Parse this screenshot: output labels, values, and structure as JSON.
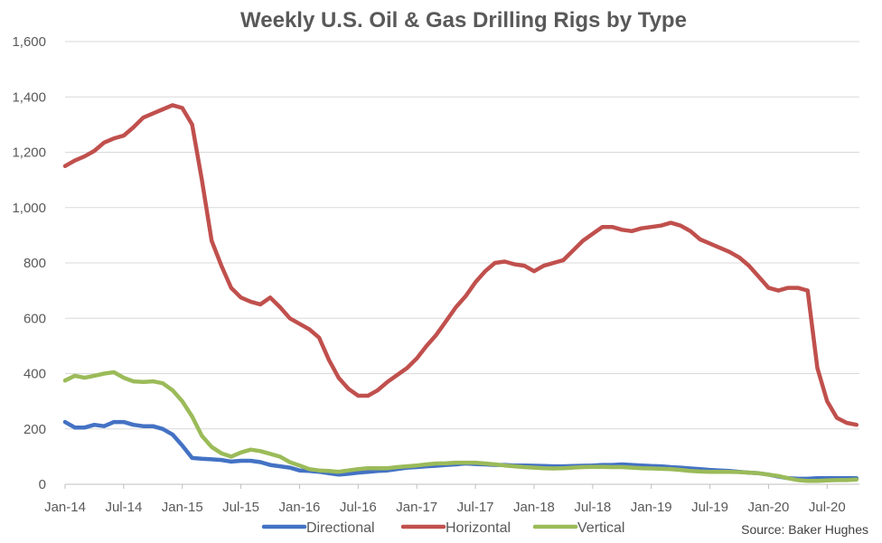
{
  "chart_data": {
    "type": "line",
    "title": "Weekly U.S. Oil & Gas Drilling Rigs by Type",
    "source": "Source: Baker Hughes",
    "xlabel": "",
    "ylabel": "",
    "x_tick_labels": [
      "Jan-14",
      "Jul-14",
      "Jan-15",
      "Jul-15",
      "Jan-16",
      "Jul-16",
      "Jan-17",
      "Jul-17",
      "Jan-18",
      "Jul-18",
      "Jan-19",
      "Jul-19",
      "Jan-20",
      "Jul-20"
    ],
    "y_tick_labels": [
      "0",
      "200",
      "400",
      "600",
      "800",
      "1,000",
      "1,200",
      "1,400",
      "1,600"
    ],
    "ylim": [
      0,
      1600
    ],
    "xlim": [
      0,
      81.3
    ],
    "x_unit": "months since Jan-14",
    "grid": true,
    "legend": "bottom",
    "series": [
      {
        "name": "Directional",
        "color": "#4472C4",
        "points": [
          [
            0,
            225
          ],
          [
            1,
            205
          ],
          [
            2,
            205
          ],
          [
            3,
            215
          ],
          [
            4,
            210
          ],
          [
            5,
            225
          ],
          [
            6,
            225
          ],
          [
            7,
            215
          ],
          [
            8,
            210
          ],
          [
            9,
            210
          ],
          [
            10,
            200
          ],
          [
            11,
            180
          ],
          [
            12,
            140
          ],
          [
            13,
            95
          ],
          [
            14,
            92
          ],
          [
            15,
            90
          ],
          [
            16,
            88
          ],
          [
            17,
            82
          ],
          [
            18,
            85
          ],
          [
            19,
            85
          ],
          [
            20,
            80
          ],
          [
            21,
            70
          ],
          [
            22,
            65
          ],
          [
            23,
            60
          ],
          [
            24,
            50
          ],
          [
            25,
            48
          ],
          [
            26,
            45
          ],
          [
            27,
            40
          ],
          [
            28,
            35
          ],
          [
            29,
            38
          ],
          [
            30,
            42
          ],
          [
            31,
            45
          ],
          [
            32,
            48
          ],
          [
            33,
            50
          ],
          [
            34,
            55
          ],
          [
            35,
            60
          ],
          [
            36,
            62
          ],
          [
            37,
            65
          ],
          [
            38,
            67
          ],
          [
            39,
            70
          ],
          [
            40,
            72
          ],
          [
            41,
            75
          ],
          [
            42,
            73
          ],
          [
            43,
            72
          ],
          [
            44,
            70
          ],
          [
            45,
            70
          ],
          [
            46,
            68
          ],
          [
            47,
            68
          ],
          [
            48,
            67
          ],
          [
            49,
            66
          ],
          [
            50,
            65
          ],
          [
            51,
            65
          ],
          [
            52,
            66
          ],
          [
            53,
            67
          ],
          [
            54,
            68
          ],
          [
            55,
            70
          ],
          [
            56,
            70
          ],
          [
            57,
            72
          ],
          [
            58,
            70
          ],
          [
            59,
            68
          ],
          [
            60,
            66
          ],
          [
            61,
            65
          ],
          [
            62,
            62
          ],
          [
            63,
            60
          ],
          [
            64,
            57
          ],
          [
            65,
            55
          ],
          [
            66,
            52
          ],
          [
            67,
            50
          ],
          [
            68,
            48
          ],
          [
            69,
            45
          ],
          [
            70,
            42
          ],
          [
            71,
            40
          ],
          [
            72,
            35
          ],
          [
            73,
            28
          ],
          [
            74,
            22
          ],
          [
            75,
            20
          ],
          [
            76,
            20
          ],
          [
            77,
            22
          ],
          [
            78,
            22
          ],
          [
            79,
            22
          ],
          [
            80,
            22
          ],
          [
            81,
            22
          ]
        ]
      },
      {
        "name": "Horizontal",
        "color": "#C0504D",
        "points": [
          [
            0,
            1150
          ],
          [
            1,
            1170
          ],
          [
            2,
            1185
          ],
          [
            3,
            1205
          ],
          [
            4,
            1235
          ],
          [
            5,
            1250
          ],
          [
            6,
            1260
          ],
          [
            7,
            1290
          ],
          [
            8,
            1325
          ],
          [
            9,
            1340
          ],
          [
            10,
            1355
          ],
          [
            11,
            1370
          ],
          [
            12,
            1360
          ],
          [
            13,
            1300
          ],
          [
            14,
            1100
          ],
          [
            15,
            880
          ],
          [
            16,
            790
          ],
          [
            17,
            710
          ],
          [
            18,
            675
          ],
          [
            19,
            660
          ],
          [
            20,
            650
          ],
          [
            21,
            675
          ],
          [
            22,
            640
          ],
          [
            23,
            600
          ],
          [
            24,
            580
          ],
          [
            25,
            560
          ],
          [
            26,
            530
          ],
          [
            27,
            450
          ],
          [
            28,
            385
          ],
          [
            29,
            345
          ],
          [
            30,
            320
          ],
          [
            31,
            320
          ],
          [
            32,
            340
          ],
          [
            33,
            370
          ],
          [
            34,
            395
          ],
          [
            35,
            420
          ],
          [
            36,
            455
          ],
          [
            37,
            500
          ],
          [
            38,
            540
          ],
          [
            39,
            590
          ],
          [
            40,
            640
          ],
          [
            41,
            680
          ],
          [
            42,
            730
          ],
          [
            43,
            770
          ],
          [
            44,
            800
          ],
          [
            45,
            805
          ],
          [
            46,
            795
          ],
          [
            47,
            790
          ],
          [
            48,
            770
          ],
          [
            49,
            790
          ],
          [
            50,
            800
          ],
          [
            51,
            810
          ],
          [
            52,
            845
          ],
          [
            53,
            880
          ],
          [
            54,
            905
          ],
          [
            55,
            930
          ],
          [
            56,
            930
          ],
          [
            57,
            920
          ],
          [
            58,
            915
          ],
          [
            59,
            925
          ],
          [
            60,
            930
          ],
          [
            61,
            935
          ],
          [
            62,
            945
          ],
          [
            63,
            935
          ],
          [
            64,
            915
          ],
          [
            65,
            885
          ],
          [
            66,
            870
          ],
          [
            67,
            855
          ],
          [
            68,
            840
          ],
          [
            69,
            820
          ],
          [
            70,
            790
          ],
          [
            71,
            750
          ],
          [
            72,
            710
          ],
          [
            73,
            700
          ],
          [
            74,
            710
          ],
          [
            75,
            710
          ],
          [
            76,
            700
          ],
          [
            77,
            420
          ],
          [
            78,
            300
          ],
          [
            79,
            240
          ],
          [
            80,
            222
          ],
          [
            81,
            215
          ]
        ]
      },
      {
        "name": "Vertical",
        "color": "#9BBB59",
        "points": [
          [
            0,
            375
          ],
          [
            1,
            392
          ],
          [
            2,
            385
          ],
          [
            3,
            392
          ],
          [
            4,
            400
          ],
          [
            5,
            405
          ],
          [
            6,
            385
          ],
          [
            7,
            372
          ],
          [
            8,
            370
          ],
          [
            9,
            372
          ],
          [
            10,
            365
          ],
          [
            11,
            340
          ],
          [
            12,
            300
          ],
          [
            13,
            245
          ],
          [
            14,
            175
          ],
          [
            15,
            135
          ],
          [
            16,
            112
          ],
          [
            17,
            100
          ],
          [
            18,
            115
          ],
          [
            19,
            125
          ],
          [
            20,
            120
          ],
          [
            21,
            110
          ],
          [
            22,
            100
          ],
          [
            23,
            80
          ],
          [
            24,
            68
          ],
          [
            25,
            55
          ],
          [
            26,
            50
          ],
          [
            27,
            48
          ],
          [
            28,
            45
          ],
          [
            29,
            50
          ],
          [
            30,
            55
          ],
          [
            31,
            58
          ],
          [
            32,
            58
          ],
          [
            33,
            58
          ],
          [
            34,
            62
          ],
          [
            35,
            65
          ],
          [
            36,
            68
          ],
          [
            37,
            72
          ],
          [
            38,
            75
          ],
          [
            39,
            76
          ],
          [
            40,
            78
          ],
          [
            41,
            78
          ],
          [
            42,
            78
          ],
          [
            43,
            75
          ],
          [
            44,
            72
          ],
          [
            45,
            68
          ],
          [
            46,
            65
          ],
          [
            47,
            62
          ],
          [
            48,
            60
          ],
          [
            49,
            58
          ],
          [
            50,
            57
          ],
          [
            51,
            58
          ],
          [
            52,
            60
          ],
          [
            53,
            62
          ],
          [
            54,
            63
          ],
          [
            55,
            63
          ],
          [
            56,
            62
          ],
          [
            57,
            62
          ],
          [
            58,
            60
          ],
          [
            59,
            58
          ],
          [
            60,
            57
          ],
          [
            61,
            56
          ],
          [
            62,
            55
          ],
          [
            63,
            52
          ],
          [
            64,
            48
          ],
          [
            65,
            46
          ],
          [
            66,
            45
          ],
          [
            67,
            45
          ],
          [
            68,
            45
          ],
          [
            69,
            44
          ],
          [
            70,
            42
          ],
          [
            71,
            40
          ],
          [
            72,
            35
          ],
          [
            73,
            30
          ],
          [
            74,
            22
          ],
          [
            75,
            15
          ],
          [
            76,
            12
          ],
          [
            77,
            12
          ],
          [
            78,
            14
          ],
          [
            79,
            15
          ],
          [
            80,
            15
          ],
          [
            81,
            17
          ]
        ]
      }
    ]
  }
}
